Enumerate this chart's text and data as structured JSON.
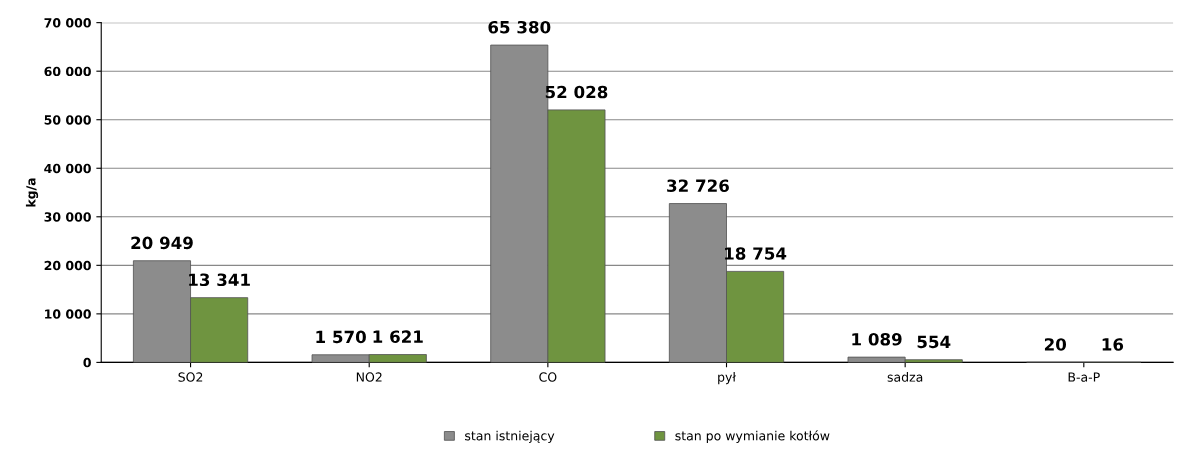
{
  "chart_data": {
    "type": "bar",
    "ylabel": "kg/a",
    "categories": [
      "SO2",
      "NO2",
      "CO",
      "pył",
      "sadza",
      "B-a-P"
    ],
    "series": [
      {
        "name": "stan istniejący",
        "color": "#8c8c8c",
        "values": [
          20949,
          1570,
          65380,
          32726,
          1089,
          20
        ],
        "value_labels": [
          "20 949",
          "1 570",
          "65 380",
          "32 726",
          "1 089",
          "20"
        ]
      },
      {
        "name": "stan po wymianie kotłów",
        "color": "#6f9440",
        "values": [
          13341,
          1621,
          52028,
          18754,
          554,
          16
        ],
        "value_labels": [
          "13 341",
          "1 621",
          "52 028",
          "18 754",
          "554",
          "16"
        ]
      }
    ],
    "ylim": [
      0,
      70000
    ],
    "yticks": [
      0,
      {
        "value": 10000,
        "label": "10 000"
      },
      {
        "value": 20000,
        "label": "20 000"
      },
      {
        "value": 30000,
        "label": "30 000"
      },
      {
        "value": 40000,
        "label": "40 000"
      },
      {
        "value": 50000,
        "label": "50 000"
      },
      {
        "value": 60000,
        "label": "60 000"
      },
      {
        "value": 70000,
        "label": "70 000"
      }
    ],
    "grid": "y",
    "legend": "bottom"
  }
}
